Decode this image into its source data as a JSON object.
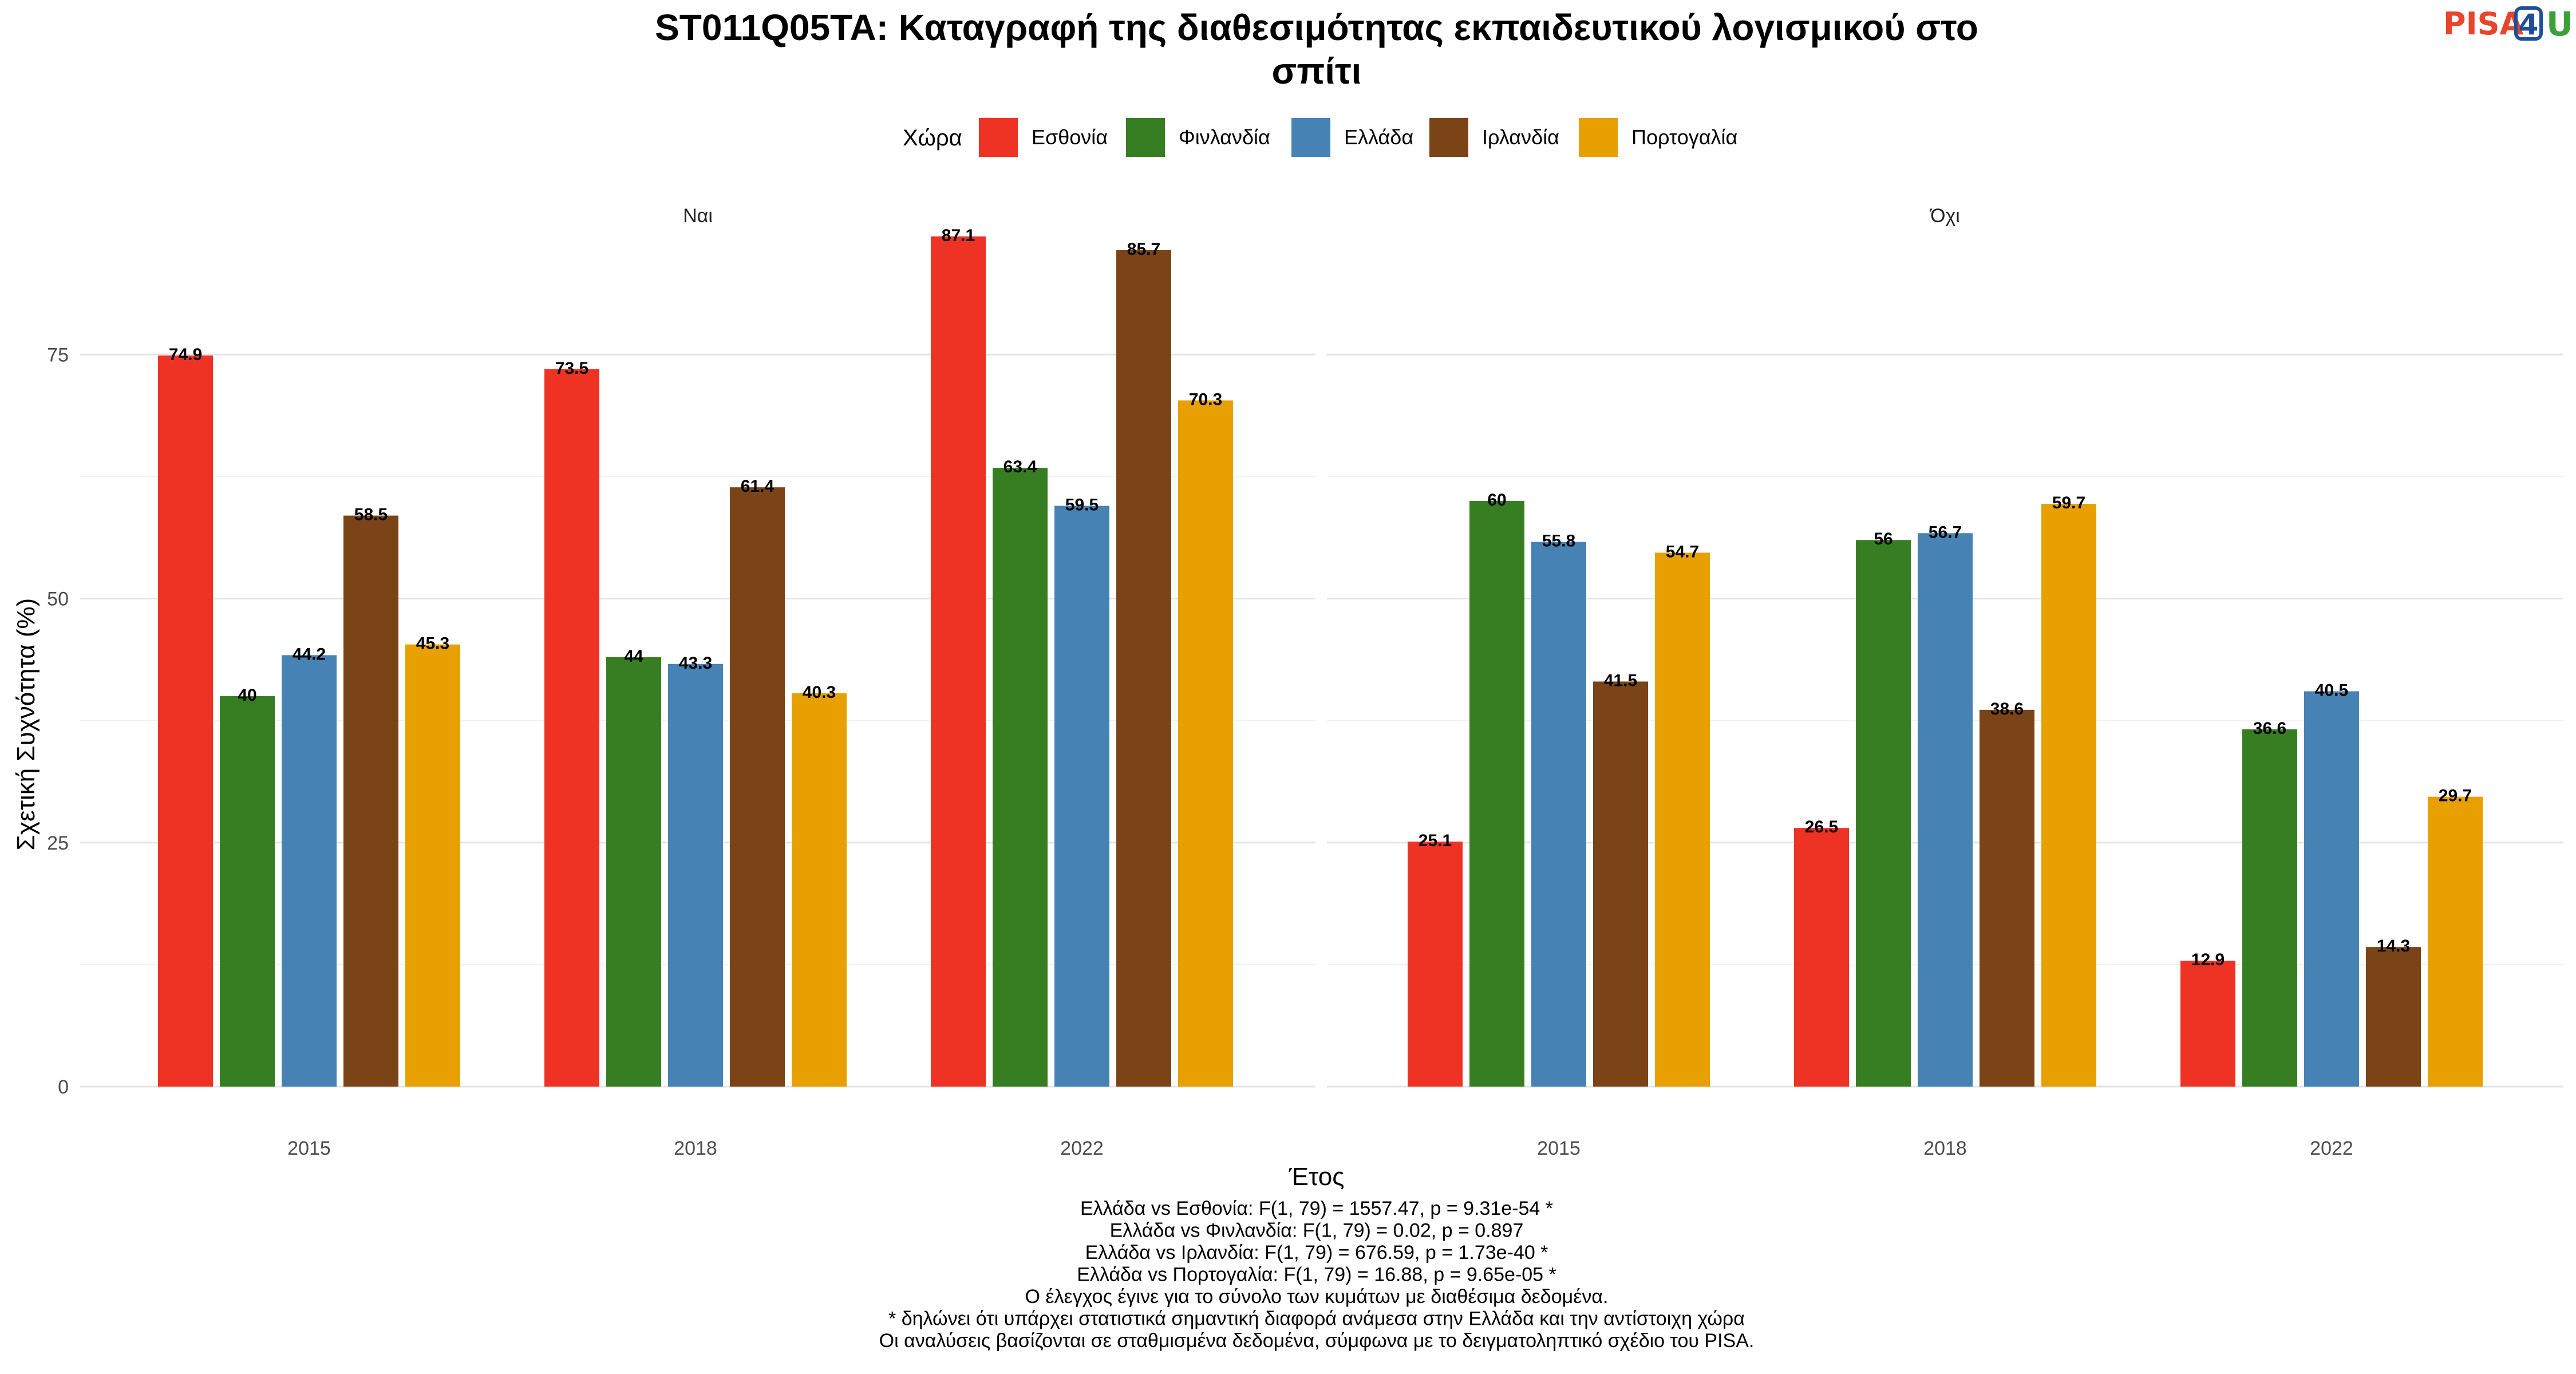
{
  "chart_data": {
    "type": "bar",
    "title_lines": [
      "ST011Q05TA: Καταγραφή της διαθεσιμότητας εκπαιδευτικού λογισμικού στο",
      "σπίτι"
    ],
    "legend": {
      "title": "Χώρα",
      "placement": "top"
    },
    "xlabel": "Έτος",
    "ylabel": "Σχετική Συχνότητα (%)",
    "ylim": [
      0,
      90
    ],
    "yticks": [
      0,
      25,
      50,
      75
    ],
    "categories": [
      "2015",
      "2018",
      "2022"
    ],
    "series_names": [
      "Εσθονία",
      "Φινλανδία",
      "Ελλάδα",
      "Ιρλανδία",
      "Πορτογαλία"
    ],
    "colors": [
      "#ee3224",
      "#377e22",
      "#4682b4",
      "#7b4416",
      "#e8a000"
    ],
    "facets": [
      {
        "label": "Ναι",
        "series": [
          {
            "name": "Εσθονία",
            "values": [
              74.9,
              73.5,
              87.1
            ]
          },
          {
            "name": "Φινλανδία",
            "values": [
              40,
              44,
              63.4
            ]
          },
          {
            "name": "Ελλάδα",
            "values": [
              44.2,
              43.3,
              59.5
            ]
          },
          {
            "name": "Ιρλανδία",
            "values": [
              58.5,
              61.4,
              85.7
            ]
          },
          {
            "name": "Πορτογαλία",
            "values": [
              45.3,
              40.3,
              70.3
            ]
          }
        ]
      },
      {
        "label": "Όχι",
        "series": [
          {
            "name": "Εσθονία",
            "values": [
              25.1,
              26.5,
              12.9
            ]
          },
          {
            "name": "Φινλανδία",
            "values": [
              60,
              56,
              36.6
            ]
          },
          {
            "name": "Ελλάδα",
            "values": [
              55.8,
              56.7,
              40.5
            ]
          },
          {
            "name": "Ιρλανδία",
            "values": [
              41.5,
              38.6,
              14.3
            ]
          },
          {
            "name": "Πορτογαλία",
            "values": [
              54.7,
              59.7,
              29.7
            ]
          }
        ]
      }
    ],
    "grid": true,
    "caption_lines": [
      "Ελλάδα vs Εσθονία: F(1, 79) = 1557.47, p = 9.31e-54 *",
      "Ελλάδα vs Φινλανδία: F(1, 79) = 0.02, p = 0.897",
      "Ελλάδα vs Ιρλανδία: F(1, 79) = 676.59, p = 1.73e-40 *",
      "Ελλάδα vs Πορτογαλία: F(1, 79) = 16.88, p = 9.65e-05 *",
      "Ο έλεγχος έγινε για το σύνολο των κυμάτων με διαθέσιμα δεδομένα.",
      "* δηλώνει ότι υπάρχει στατιστικά σημαντική διαφορά ανάμεσα στην Ελλάδα και την αντίστοιχη χώρα",
      "Οι αναλύσεις βασίζονται σε σταθμισμένα δεδομένα, σύμφωνα με το δειγματοληπτικό σχέδιο του PISA."
    ]
  },
  "logo": {
    "part1": "PISA",
    "part2": "4",
    "part3": "U"
  }
}
